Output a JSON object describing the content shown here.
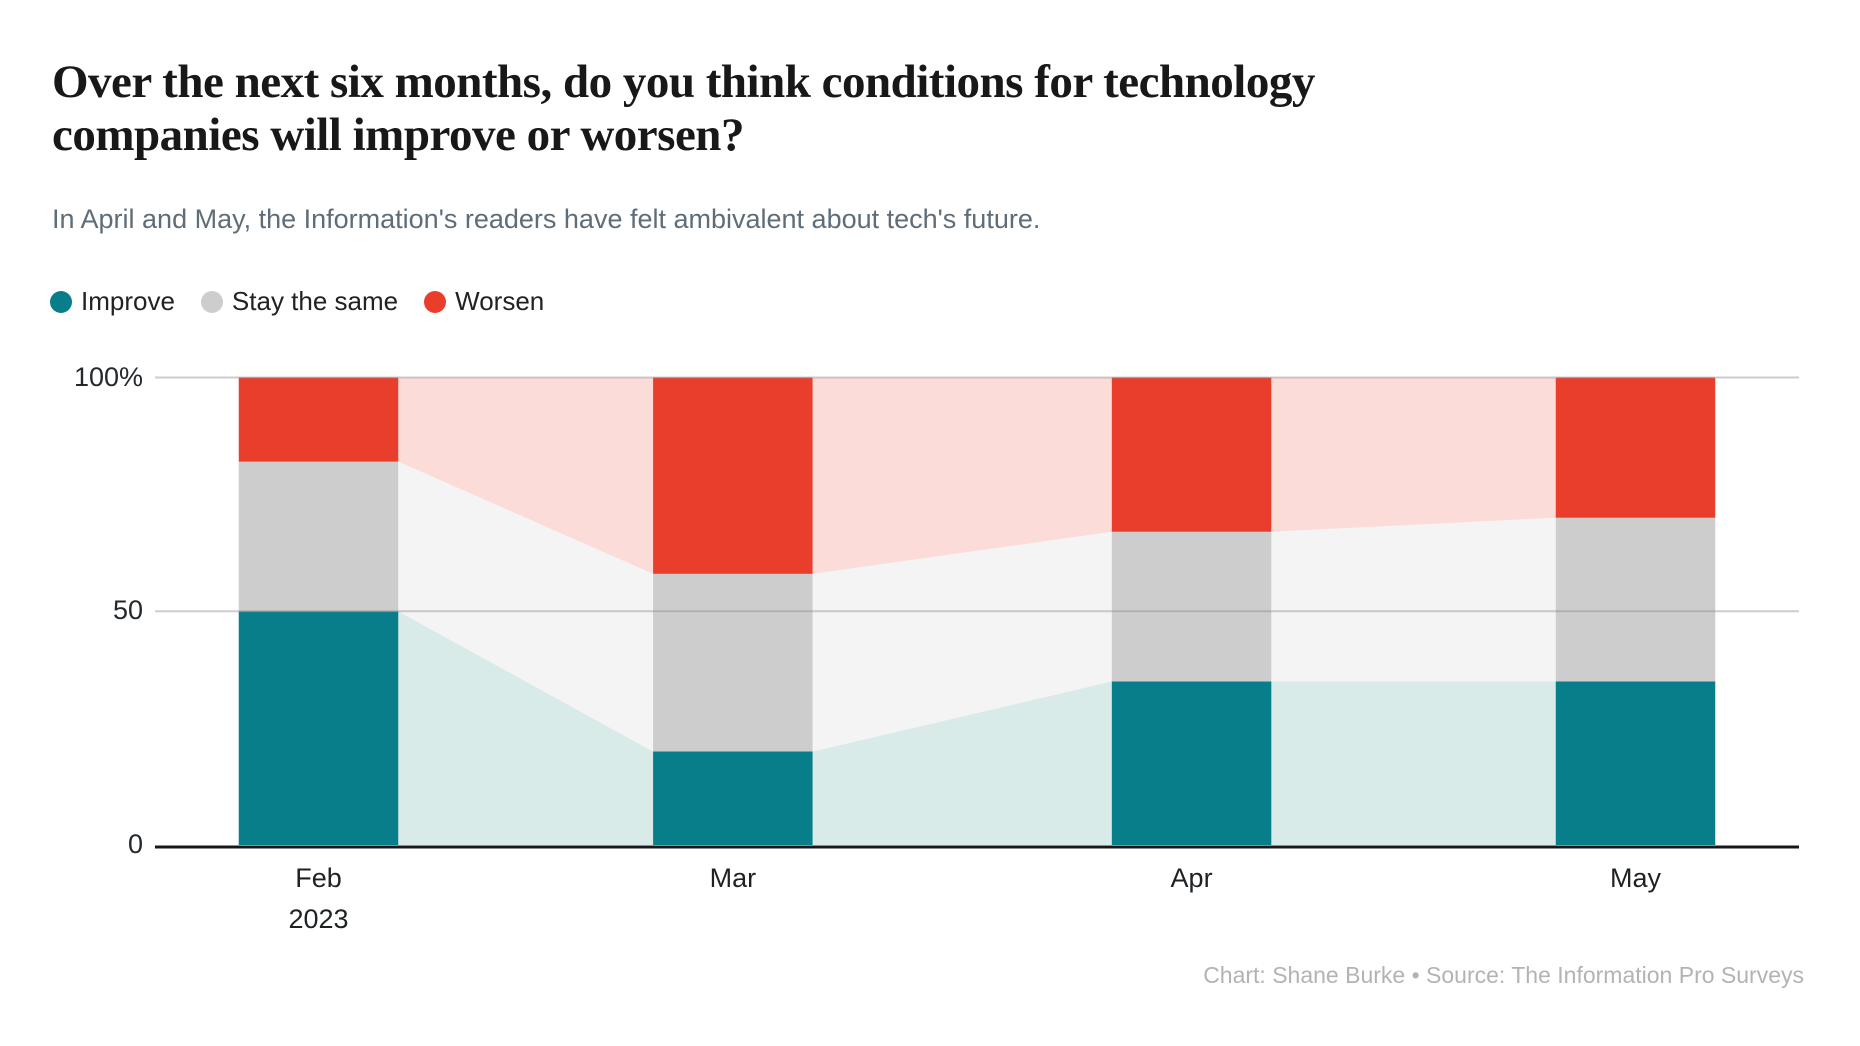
{
  "header": {
    "title_line1": "Over the next six months, do you think conditions for technology",
    "title_line2": "companies will improve or worsen?",
    "title_full": "Over the next six months, do you think conditions for technology companies will improve or worsen?",
    "subtitle": "In April and May, the Information's readers have felt ambivalent about tech's future."
  },
  "footer": {
    "attribution": "Chart: Shane Burke • Source: The Information Pro Surveys"
  },
  "colors": {
    "improve": "#087E8B",
    "improve_light": "#D8EBE9",
    "stay": "#CDCDCD",
    "stay_light": "#F5F4F4",
    "worsen": "#EA3E2D",
    "worsen_light": "#FBDCD9",
    "gridline": "#8A8A8A",
    "axis": "#16191C"
  },
  "chart_data": {
    "type": "bar",
    "variant": "stacked-percentage-columns-with-area-connectors",
    "title": "Over the next six months, do you think conditions for technology companies will improve or worsen?",
    "xlabel": "",
    "ylabel": "",
    "ylim": [
      0,
      100
    ],
    "grid": "horizontal",
    "legend_position": "top-left",
    "categories": [
      "Feb",
      "Mar",
      "Apr",
      "May"
    ],
    "x_first_label_year": "2023",
    "x_day_offsets": [
      0,
      28,
      59,
      89
    ],
    "y_ticks": [
      {
        "value": 0,
        "label": "0"
      },
      {
        "value": 50,
        "label": "50"
      },
      {
        "value": 100,
        "label": "100%"
      }
    ],
    "series": [
      {
        "name": "Improve",
        "color": "#087E8B",
        "light_color": "#D8EBE9",
        "values": [
          50,
          20,
          35,
          35
        ]
      },
      {
        "name": "Stay the same",
        "color": "#CDCDCD",
        "light_color": "#F5F4F4",
        "values": [
          32,
          38,
          32,
          35
        ]
      },
      {
        "name": "Worsen",
        "color": "#EA3E2D",
        "light_color": "#FBDCD9",
        "values": [
          18,
          42,
          33,
          30
        ]
      }
    ]
  }
}
